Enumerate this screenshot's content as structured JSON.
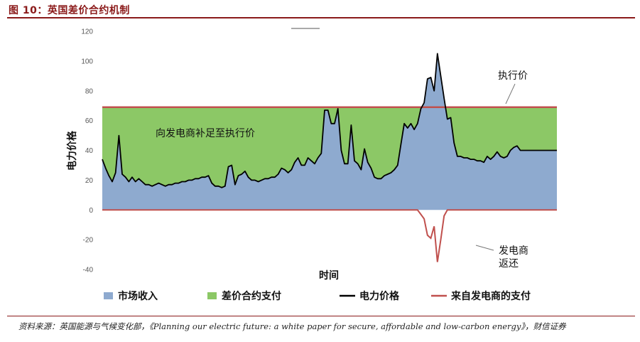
{
  "figure": {
    "title": "图 10：英国差价合约机制",
    "source": "资料来源：英国能源与气候变化部，《Planning our electric future: a white paper for secure, affordable and low-carbon energy》，财信证券"
  },
  "chart_data": {
    "type": "area",
    "xlabel": "时间",
    "ylabel": "电力价格",
    "ylim": [
      -40,
      120
    ],
    "yticks": [
      -40,
      -20,
      0,
      20,
      40,
      60,
      80,
      100,
      120
    ],
    "grid": false,
    "strike_price": 69,
    "annotations": {
      "strike": "执行价",
      "top_up": "向发电商补足至执行价",
      "payback_line1": "发电商",
      "payback_line2": "返还"
    },
    "legend": [
      {
        "label": "市场收入",
        "color": "#8eaacf",
        "kind": "box"
      },
      {
        "label": "差价合约支付",
        "color": "#8cc866",
        "kind": "box"
      },
      {
        "label": "电力价格",
        "color": "#000000",
        "kind": "line"
      },
      {
        "label": "来自发电商的支付",
        "color": "#c0504d",
        "kind": "line"
      }
    ],
    "colors": {
      "market": "#8eaacf",
      "cfd": "#8cc866",
      "price": "#000000",
      "generator": "#c0504d"
    },
    "x": [
      0,
      1,
      2,
      3,
      4,
      5,
      6,
      7,
      8,
      9,
      10,
      11,
      12,
      13,
      14,
      15,
      16,
      17,
      18,
      19,
      20,
      21,
      22,
      23,
      24,
      25,
      26,
      27,
      28,
      29,
      30,
      31,
      32,
      33,
      34,
      35,
      36,
      37,
      38,
      39,
      40,
      41,
      42,
      43,
      44,
      45,
      46,
      47,
      48,
      49,
      50,
      51,
      52,
      53,
      54,
      55,
      56,
      57,
      58,
      59,
      60,
      61,
      62,
      63,
      64,
      65,
      66,
      67,
      68,
      69,
      70,
      71,
      72,
      73,
      74,
      75,
      76,
      77,
      78,
      79,
      80,
      81,
      82,
      83,
      84,
      85,
      86,
      87,
      88,
      89,
      90,
      91,
      92,
      93,
      94,
      95,
      96,
      97,
      98,
      99,
      100,
      101,
      102,
      103,
      104,
      105,
      106,
      107,
      108,
      109,
      110,
      111,
      112,
      113,
      114,
      115,
      116,
      117,
      118,
      119,
      120,
      121,
      122,
      123,
      124,
      125,
      126,
      127,
      128,
      129,
      130,
      131,
      132,
      133,
      134,
      135,
      136,
      137
    ],
    "price": [
      34,
      28,
      23,
      19,
      25,
      50,
      24,
      22,
      19,
      22,
      19,
      21,
      19,
      17,
      17,
      16,
      17,
      18,
      17,
      16,
      17,
      17,
      18,
      18,
      19,
      19,
      20,
      20,
      21,
      21,
      22,
      22,
      23,
      18,
      16,
      16,
      15,
      16,
      29,
      30,
      17,
      23,
      24,
      26,
      22,
      20,
      20,
      19,
      20,
      21,
      21,
      22,
      22,
      24,
      28,
      27,
      25,
      27,
      32,
      35,
      30,
      30,
      35,
      33,
      31,
      35,
      38,
      67,
      67,
      58,
      58,
      68,
      40,
      31,
      31,
      57,
      33,
      31,
      27,
      41,
      32,
      28,
      22,
      21,
      21,
      23,
      24,
      25,
      27,
      30,
      44,
      58,
      55,
      58,
      54,
      58,
      68,
      72,
      88,
      89,
      80,
      105,
      90,
      75,
      61,
      62,
      45,
      36,
      36,
      35,
      35,
      34,
      34,
      33,
      33,
      32,
      36,
      34,
      36,
      39,
      36,
      35,
      36,
      40,
      42,
      43,
      40,
      40,
      40,
      40,
      40,
      40,
      40,
      40,
      40,
      40,
      40,
      40
    ],
    "generator_payment": [
      0,
      0,
      0,
      0,
      0,
      0,
      0,
      0,
      0,
      0,
      0,
      0,
      0,
      0,
      0,
      0,
      0,
      0,
      0,
      0,
      0,
      0,
      0,
      0,
      0,
      0,
      0,
      0,
      0,
      0,
      0,
      0,
      0,
      0,
      0,
      0,
      0,
      0,
      0,
      0,
      0,
      0,
      0,
      0,
      0,
      0,
      0,
      0,
      0,
      0,
      0,
      0,
      0,
      0,
      0,
      0,
      0,
      0,
      0,
      0,
      0,
      0,
      0,
      0,
      0,
      0,
      0,
      0,
      0,
      0,
      0,
      0,
      0,
      0,
      0,
      0,
      0,
      0,
      0,
      0,
      0,
      0,
      0,
      0,
      0,
      0,
      0,
      0,
      0,
      0,
      0,
      0,
      0,
      0,
      0,
      0,
      -3,
      -6,
      -17,
      -19,
      -11,
      -35,
      -20,
      -4,
      0,
      0,
      0,
      0,
      0,
      0,
      0,
      0,
      0,
      0,
      0,
      0,
      0,
      0,
      0,
      0,
      0,
      0,
      0,
      0,
      0,
      0,
      0,
      0,
      0,
      0,
      0,
      0,
      0,
      0,
      0,
      0,
      0,
      0
    ]
  }
}
